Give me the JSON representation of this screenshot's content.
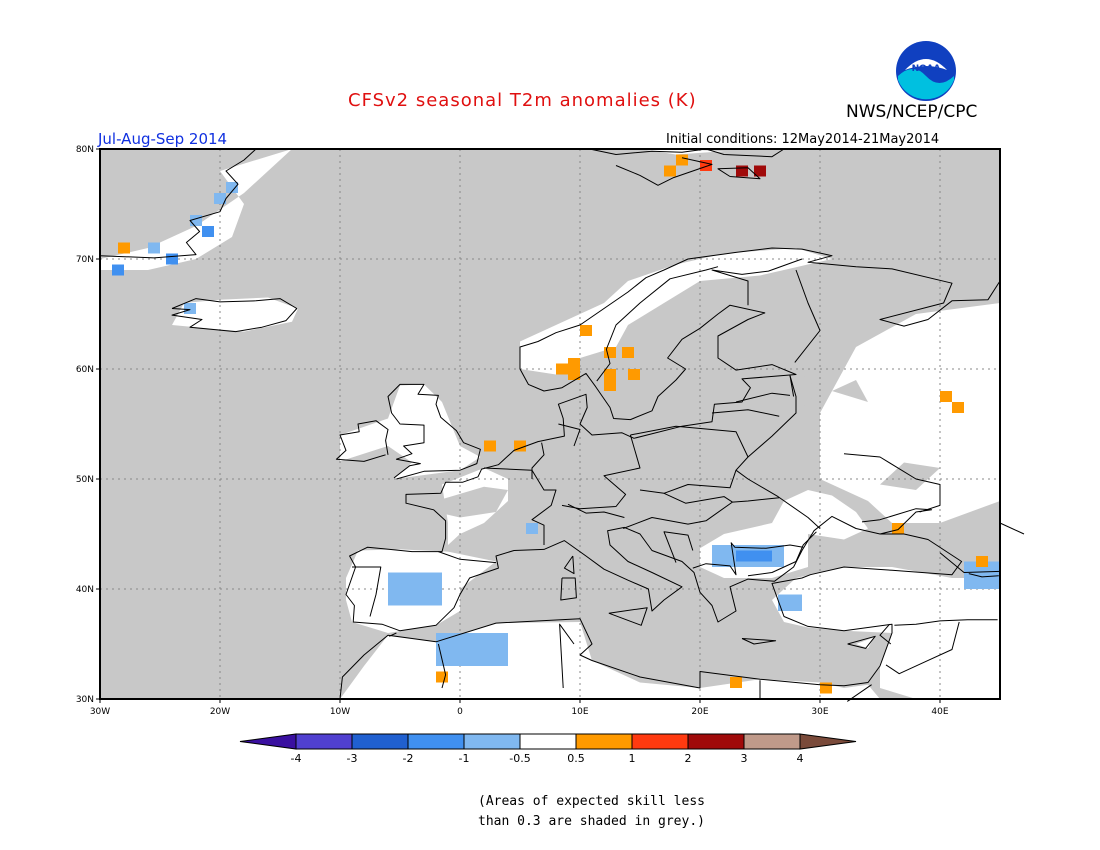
{
  "header": {
    "title": "CFSv2 seasonal T2m anomalies (K)",
    "credit": "NWS/NCEP/CPC",
    "logo_text": "NOAA",
    "season": "Jul-Aug-Sep 2014",
    "init_conditions": "Initial conditions: 12May2014-21May2014"
  },
  "map": {
    "lat_range": [
      30,
      80
    ],
    "lon_range": [
      -30,
      45
    ],
    "lat_labels": [
      "30N",
      "40N",
      "50N",
      "60N",
      "70N",
      "80N"
    ],
    "lon_labels": [
      "30W",
      "20W",
      "10W",
      "0",
      "10E",
      "20E",
      "30E",
      "40E"
    ],
    "skill_grey": "#c8c8c8",
    "anomaly_cells": [
      {
        "lon": 18,
        "lat": 78.5,
        "class": "0.5-1"
      },
      {
        "lon": 20,
        "lat": 78,
        "class": "1-2"
      },
      {
        "lon": 23,
        "lat": 77.5,
        "class": "2-3"
      },
      {
        "lon": 24.5,
        "lat": 77.5,
        "class": "2-3"
      },
      {
        "lon": 17,
        "lat": 77.5,
        "class": "0.5-1"
      },
      {
        "lon": -28.5,
        "lat": 70.5,
        "class": "0.5-1"
      },
      {
        "lon": -26,
        "lat": 70.5,
        "class": "-1--0.5"
      },
      {
        "lon": -24.5,
        "lat": 69.5,
        "class": "-2--1"
      },
      {
        "lon": -29,
        "lat": 68.5,
        "class": "-2--1"
      },
      {
        "lon": -21.5,
        "lat": 72,
        "class": "-2--1"
      },
      {
        "lon": -22.5,
        "lat": 73,
        "class": "-1--0.5"
      },
      {
        "lon": -20.5,
        "lat": 75,
        "class": "-1--0.5"
      },
      {
        "lon": -19.5,
        "lat": 76,
        "class": "-1--0.5"
      },
      {
        "lon": -23,
        "lat": 65,
        "class": "-1--0.5"
      },
      {
        "lon": 10,
        "lat": 63,
        "class": "0.5-1"
      },
      {
        "lon": 12,
        "lat": 61,
        "class": "0.5-1"
      },
      {
        "lon": 13.5,
        "lat": 61,
        "class": "0.5-1"
      },
      {
        "lon": 8,
        "lat": 59.5,
        "class": "0.5-1"
      },
      {
        "lon": 9,
        "lat": 60,
        "class": "0.5-1"
      },
      {
        "lon": 9,
        "lat": 59,
        "class": "0.5-1"
      },
      {
        "lon": 12,
        "lat": 59,
        "class": "0.5-1"
      },
      {
        "lon": 12,
        "lat": 58,
        "class": "0.5-1"
      },
      {
        "lon": 14,
        "lat": 59,
        "class": "0.5-1"
      },
      {
        "lon": 40,
        "lat": 57,
        "class": "0.5-1"
      },
      {
        "lon": 41,
        "lat": 56,
        "class": "0.5-1"
      },
      {
        "lon": 2,
        "lat": 52.5,
        "class": "0.5-1"
      },
      {
        "lon": 4.5,
        "lat": 52.5,
        "class": "0.5-1"
      },
      {
        "lon": 5.5,
        "lat": 45,
        "class": "-1--0.5"
      },
      {
        "lon": 36,
        "lat": 45,
        "class": "0.5-1"
      },
      {
        "lon": 43,
        "lat": 42,
        "class": "0.5-1"
      },
      {
        "lon": 22.5,
        "lat": 31,
        "class": "0.5-1"
      },
      {
        "lon": 30,
        "lat": 30.5,
        "class": "0.5-1"
      },
      {
        "lon": -2,
        "lat": 31.5,
        "class": "0.5-1"
      }
    ],
    "negative_regions": [
      {
        "name": "iberia",
        "lon": [
          -6,
          -1.5
        ],
        "lat": [
          38.5,
          41.5
        ],
        "class": "-1--0.5"
      },
      {
        "name": "north-africa",
        "lon": [
          -2,
          4
        ],
        "lat": [
          33,
          36
        ],
        "class": "-1--0.5"
      },
      {
        "name": "balkans",
        "lon": [
          21,
          27
        ],
        "lat": [
          42,
          44
        ],
        "class": "-1--0.5"
      },
      {
        "name": "balkans-core",
        "lon": [
          23,
          26
        ],
        "lat": [
          42.5,
          43.5
        ],
        "class": "-2--1"
      },
      {
        "name": "aegean",
        "lon": [
          26.5,
          28.5
        ],
        "lat": [
          38,
          39.5
        ],
        "class": "-1--0.5"
      },
      {
        "name": "caucasus",
        "lon": [
          42,
          45
        ],
        "lat": [
          40,
          42.5
        ],
        "class": "-1--0.5"
      }
    ]
  },
  "colorbar": {
    "labels": [
      "-4",
      "-3",
      "-2",
      "-1",
      "-0.5",
      "0.5",
      "1",
      "2",
      "3",
      "4"
    ],
    "colors": [
      "#3a10a0",
      "#5040d0",
      "#2060d0",
      "#4090f0",
      "#80b8f0",
      "#ffffff",
      "#ff9a00",
      "#ff3a10",
      "#a00a0a",
      "#c09a8a",
      "#7a4a3a"
    ]
  },
  "footer": {
    "note_line1": "(Areas of expected skill less",
    "note_line2": "than 0.3 are shaded in grey.)"
  }
}
